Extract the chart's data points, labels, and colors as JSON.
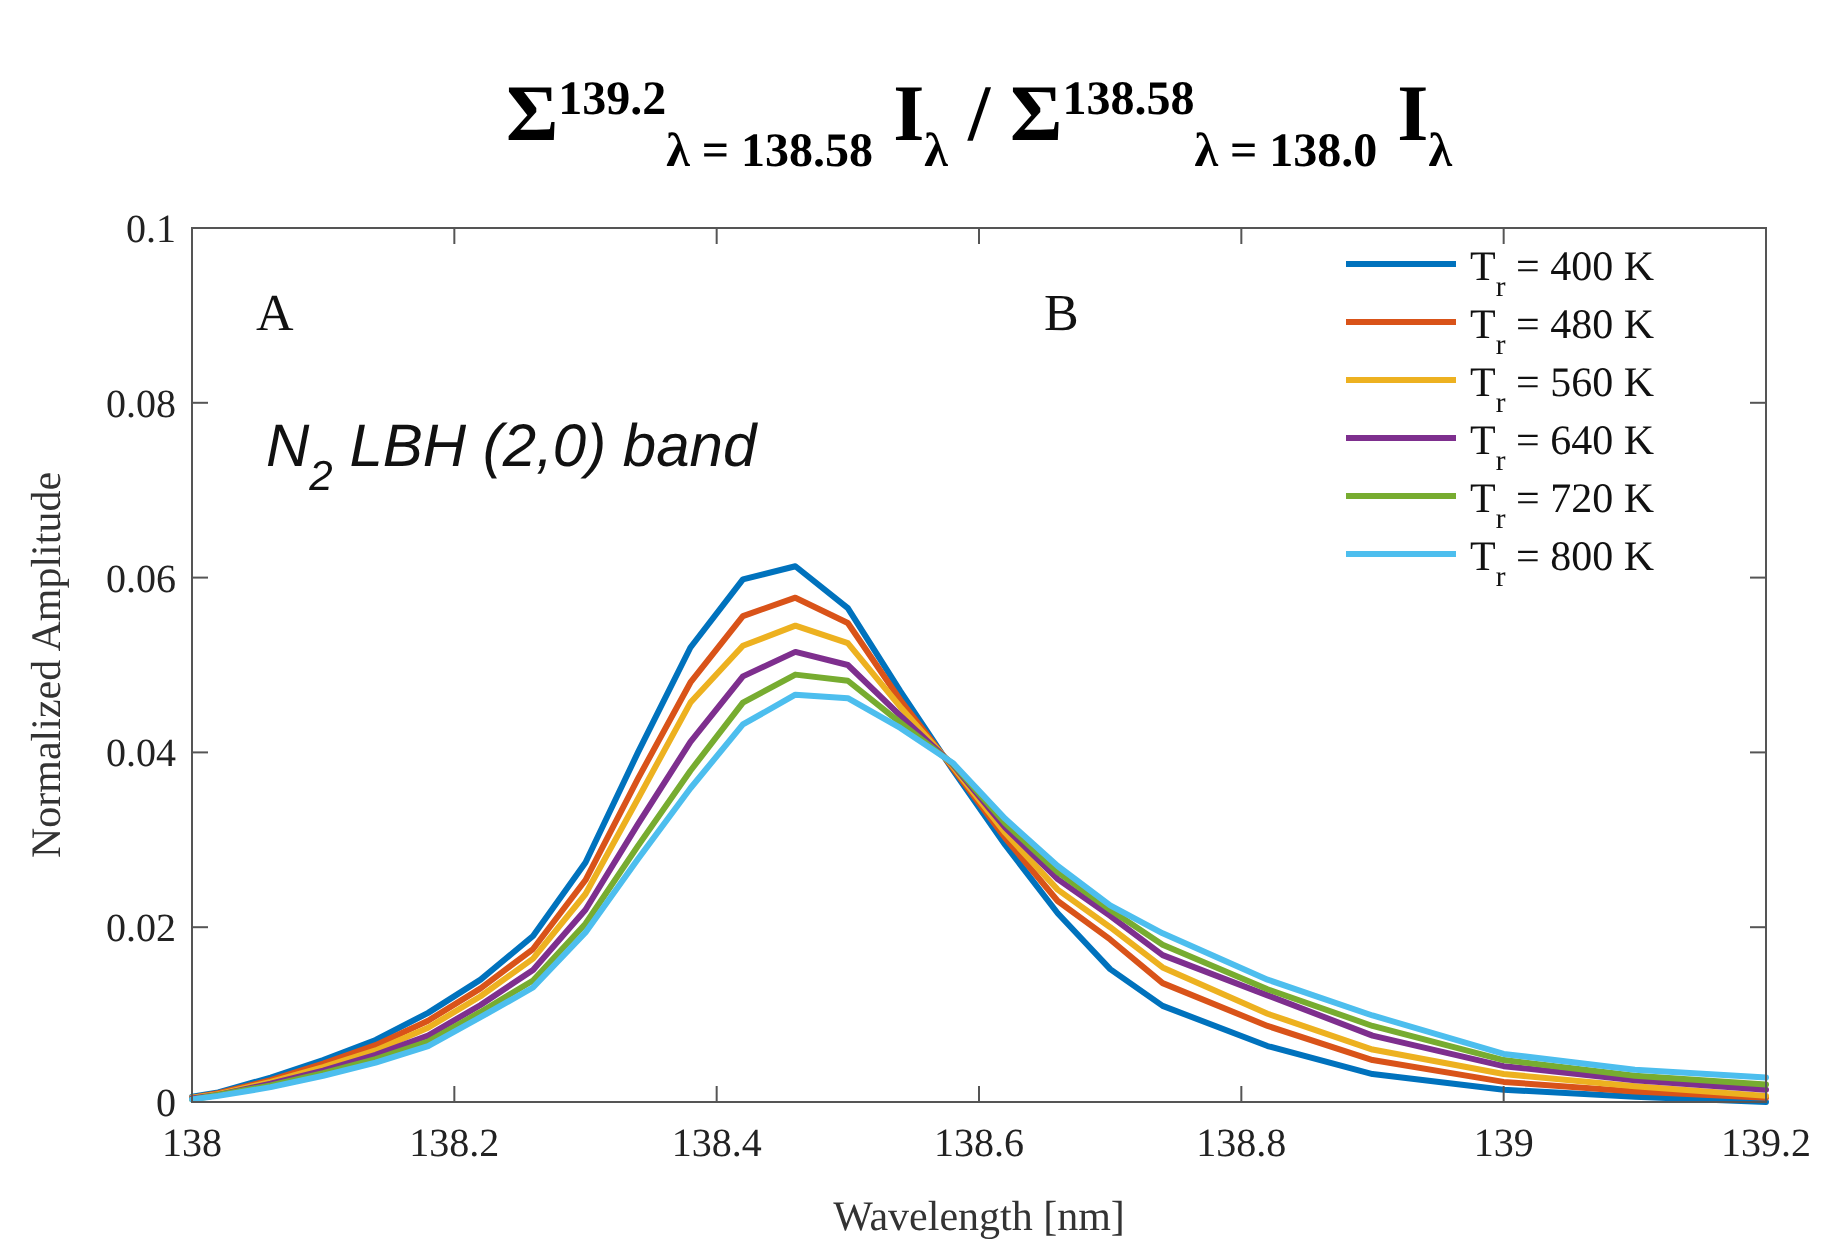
{
  "chart_data": {
    "type": "line",
    "title": "Σ$^{139.2}$$_{λ = 138.58}$ I$_{λ}$ / Σ$^{138.58}$$_{λ = 138.0}$ I$_{λ}$",
    "xlabel": "Wavelength [nm]",
    "ylabel": "Normalized Amplitude",
    "annotations": [
      "A",
      "B",
      "N$_{2}$ LBH (2,0) band"
    ],
    "x": [
      138,
      138.02,
      138.06,
      138.1,
      138.14,
      138.18,
      138.22,
      138.26,
      138.3,
      138.34,
      138.38,
      138.42,
      138.46,
      138.5,
      138.54,
      138.58,
      138.62,
      138.66,
      138.7,
      138.74,
      138.82,
      138.9,
      139,
      139.1,
      139.2
    ],
    "series": [
      {
        "name": "T$_{r}$ = 400 K",
        "color": "#0072bd",
        "values": [
          0.0006,
          0.0011,
          0.0028,
          0.0048,
          0.0071,
          0.0102,
          0.014,
          0.019,
          0.0274,
          0.04,
          0.052,
          0.0598,
          0.0613,
          0.0565,
          0.047,
          0.038,
          0.0294,
          0.0216,
          0.0152,
          0.011,
          0.0064,
          0.0032,
          0.0014,
          0.0006,
          0
        ]
      },
      {
        "name": "T$_{r}$ = 480 K",
        "color": "#d95319",
        "values": [
          0.0005,
          0.001,
          0.0025,
          0.0044,
          0.0065,
          0.0093,
          0.013,
          0.0175,
          0.0254,
          0.037,
          0.048,
          0.0556,
          0.0577,
          0.0548,
          0.046,
          0.0382,
          0.0302,
          0.023,
          0.0186,
          0.0136,
          0.0087,
          0.0048,
          0.0023,
          0.0012,
          0.0005
        ]
      },
      {
        "name": "T$_{r}$ = 560 K",
        "color": "#edb120",
        "values": [
          0.0005,
          0.0009,
          0.0023,
          0.004,
          0.0059,
          0.0085,
          0.0121,
          0.0164,
          0.0238,
          0.0347,
          0.0457,
          0.0522,
          0.0545,
          0.0525,
          0.0452,
          0.0384,
          0.0308,
          0.0243,
          0.02,
          0.0154,
          0.0101,
          0.006,
          0.0032,
          0.0018,
          0.0007
        ]
      },
      {
        "name": "T$_{r}$ = 640 K",
        "color": "#7e2f8e",
        "values": [
          0.0004,
          0.0008,
          0.0021,
          0.0036,
          0.0054,
          0.0076,
          0.0111,
          0.0151,
          0.022,
          0.0318,
          0.0412,
          0.0487,
          0.0515,
          0.05,
          0.0442,
          0.0386,
          0.0314,
          0.0255,
          0.0213,
          0.0168,
          0.0122,
          0.0076,
          0.0041,
          0.0025,
          0.0014
        ]
      },
      {
        "name": "T$_{r}$ = 720 K",
        "color": "#77ac30",
        "values": [
          0.0003,
          0.0008,
          0.0019,
          0.0033,
          0.0049,
          0.0069,
          0.0103,
          0.0139,
          0.0204,
          0.0293,
          0.0379,
          0.0457,
          0.0489,
          0.0482,
          0.0434,
          0.0387,
          0.0319,
          0.0263,
          0.022,
          0.018,
          0.0129,
          0.0087,
          0.0048,
          0.003,
          0.002
        ]
      },
      {
        "name": "T$_{r}$ = 800 K",
        "color": "#4dbeee",
        "values": [
          0.0003,
          0.0007,
          0.0017,
          0.003,
          0.0045,
          0.0064,
          0.0097,
          0.0131,
          0.0194,
          0.0278,
          0.0359,
          0.0432,
          0.0466,
          0.0462,
          0.0428,
          0.0388,
          0.0324,
          0.027,
          0.0225,
          0.0193,
          0.014,
          0.0099,
          0.0055,
          0.0037,
          0.0028
        ]
      }
    ],
    "xlim": [
      138,
      139.2
    ],
    "xticks": [
      138,
      138.2,
      138.4,
      138.6,
      138.8,
      139,
      139.2
    ],
    "ylim": [
      0,
      0.1
    ],
    "yticks": [
      0,
      0.02,
      0.04,
      0.06,
      0.08,
      0.1
    ],
    "grid": false,
    "legend": "top right",
    "marker": "none",
    "line_style": "solid"
  }
}
